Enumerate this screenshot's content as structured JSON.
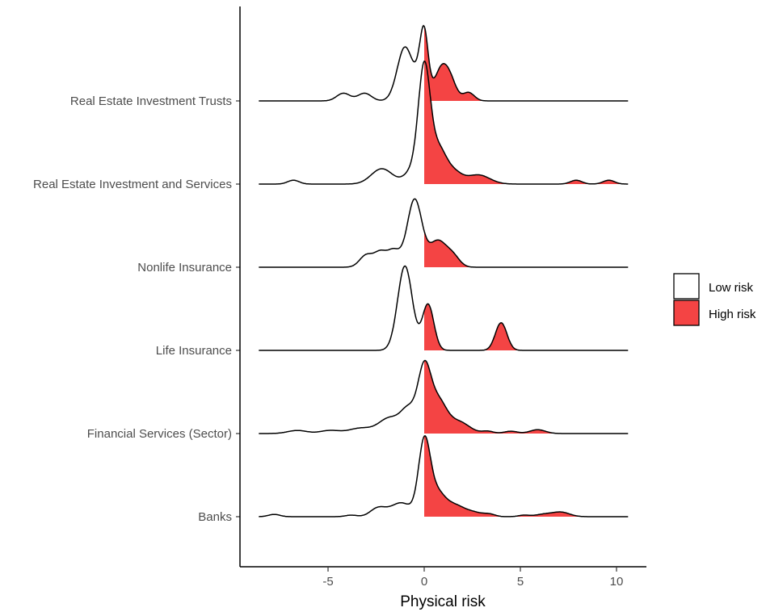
{
  "chart_data": {
    "type": "area",
    "subtype": "ridgeline density",
    "xlabel": "Physical risk",
    "ylabel": "",
    "xlim": [
      -9,
      11.5
    ],
    "x_ticks": [
      -5,
      0,
      5,
      10
    ],
    "x_tick_labels": [
      "-5",
      "0",
      "5",
      "10"
    ],
    "grid": false,
    "legend_position": "right",
    "fill_threshold": 0,
    "legend": [
      {
        "label": "Low risk",
        "color": "#ffffff"
      },
      {
        "label": "High risk",
        "color": "#f44444"
      }
    ],
    "categories": [
      "Banks",
      "Financial Services (Sector)",
      "Life Insurance",
      "Nonlife Insurance",
      "Real Estate Investment and Services",
      "Real Estate Investment Trusts"
    ],
    "series": [
      {
        "category": "Banks",
        "range": [
          -8.6,
          10.6
        ],
        "peaks": [
          {
            "x": -7.8,
            "h": 0.03,
            "w": 0.3
          },
          {
            "x": -3.8,
            "h": 0.02,
            "w": 0.3
          },
          {
            "x": -2.4,
            "h": 0.11,
            "w": 0.4
          },
          {
            "x": -1.2,
            "h": 0.18,
            "w": 0.55
          },
          {
            "x": 0.0,
            "h": 0.9,
            "w": 0.3
          },
          {
            "x": 0.6,
            "h": 0.32,
            "w": 0.45
          },
          {
            "x": 1.6,
            "h": 0.14,
            "w": 0.5
          },
          {
            "x": 2.6,
            "h": 0.05,
            "w": 0.45
          },
          {
            "x": 3.4,
            "h": 0.03,
            "w": 0.3
          },
          {
            "x": 5.2,
            "h": 0.02,
            "w": 0.3
          },
          {
            "x": 6.2,
            "h": 0.03,
            "w": 0.4
          },
          {
            "x": 7.1,
            "h": 0.06,
            "w": 0.45
          }
        ]
      },
      {
        "category": "Financial Services (Sector)",
        "range": [
          -8.6,
          10.6
        ],
        "peaks": [
          {
            "x": -6.6,
            "h": 0.04,
            "w": 0.5
          },
          {
            "x": -4.9,
            "h": 0.04,
            "w": 0.5
          },
          {
            "x": -3.3,
            "h": 0.07,
            "w": 0.6
          },
          {
            "x": -1.8,
            "h": 0.2,
            "w": 0.55
          },
          {
            "x": -0.8,
            "h": 0.3,
            "w": 0.4
          },
          {
            "x": 0.0,
            "h": 0.78,
            "w": 0.33
          },
          {
            "x": 0.7,
            "h": 0.42,
            "w": 0.45
          },
          {
            "x": 1.8,
            "h": 0.15,
            "w": 0.55
          },
          {
            "x": 3.3,
            "h": 0.03,
            "w": 0.3
          },
          {
            "x": 4.5,
            "h": 0.03,
            "w": 0.35
          },
          {
            "x": 5.9,
            "h": 0.05,
            "w": 0.4
          }
        ]
      },
      {
        "category": "Life Insurance",
        "range": [
          -8.6,
          10.6
        ],
        "peaks": [
          {
            "x": -1.0,
            "h": 1.1,
            "w": 0.38
          },
          {
            "x": 0.2,
            "h": 0.6,
            "w": 0.3
          },
          {
            "x": 4.0,
            "h": 0.36,
            "w": 0.3
          }
        ]
      },
      {
        "category": "Nonlife Insurance",
        "range": [
          -8.6,
          10.6
        ],
        "peaks": [
          {
            "x": -3.0,
            "h": 0.16,
            "w": 0.35
          },
          {
            "x": -2.3,
            "h": 0.17,
            "w": 0.3
          },
          {
            "x": -1.6,
            "h": 0.22,
            "w": 0.35
          },
          {
            "x": -0.5,
            "h": 0.88,
            "w": 0.38
          },
          {
            "x": 0.7,
            "h": 0.34,
            "w": 0.45
          },
          {
            "x": 1.5,
            "h": 0.13,
            "w": 0.35
          }
        ]
      },
      {
        "category": "Real Estate Investment and Services",
        "range": [
          -8.6,
          10.6
        ],
        "peaks": [
          {
            "x": -6.8,
            "h": 0.05,
            "w": 0.3
          },
          {
            "x": -2.2,
            "h": 0.2,
            "w": 0.55
          },
          {
            "x": -0.5,
            "h": 0.2,
            "w": 0.45
          },
          {
            "x": 0.0,
            "h": 1.35,
            "w": 0.3
          },
          {
            "x": 0.7,
            "h": 0.48,
            "w": 0.45
          },
          {
            "x": 1.6,
            "h": 0.12,
            "w": 0.4
          },
          {
            "x": 2.8,
            "h": 0.12,
            "w": 0.6
          },
          {
            "x": 7.9,
            "h": 0.05,
            "w": 0.3
          },
          {
            "x": 9.6,
            "h": 0.05,
            "w": 0.3
          }
        ]
      },
      {
        "category": "Real Estate Investment Trusts",
        "range": [
          -8.6,
          10.6
        ],
        "peaks": [
          {
            "x": -4.2,
            "h": 0.1,
            "w": 0.35
          },
          {
            "x": -3.1,
            "h": 0.1,
            "w": 0.35
          },
          {
            "x": -1.0,
            "h": 0.7,
            "w": 0.4
          },
          {
            "x": -0.1,
            "h": 0.4,
            "w": 0.3
          },
          {
            "x": 0.0,
            "h": 0.55,
            "w": 0.2
          },
          {
            "x": 0.9,
            "h": 0.42,
            "w": 0.35
          },
          {
            "x": 1.4,
            "h": 0.2,
            "w": 0.3
          },
          {
            "x": 2.3,
            "h": 0.11,
            "w": 0.3
          }
        ]
      }
    ]
  }
}
